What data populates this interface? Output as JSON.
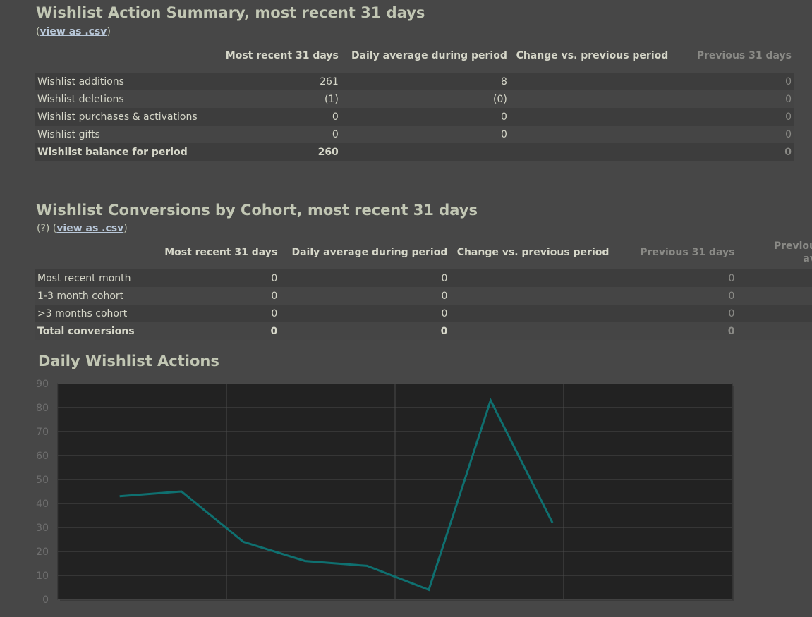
{
  "summary": {
    "title": "Wishlist Action Summary, most recent 31 days",
    "csv_link": "view as .csv",
    "columns": [
      "Most recent 31 days",
      "Daily average during period",
      "Change vs. previous period",
      "Previous 31 days"
    ],
    "rows": [
      {
        "label": "Wishlist additions",
        "recent": "261",
        "avg": "8",
        "change": "",
        "prev": "0"
      },
      {
        "label": "Wishlist deletions",
        "recent": "(1)",
        "avg": "(0)",
        "change": "",
        "prev": "0"
      },
      {
        "label": "Wishlist purchases & activations",
        "recent": "0",
        "avg": "0",
        "change": "",
        "prev": "0"
      },
      {
        "label": "Wishlist gifts",
        "recent": "0",
        "avg": "0",
        "change": "",
        "prev": "0"
      },
      {
        "label": "Wishlist balance for period",
        "recent": "260",
        "avg": "",
        "change": "",
        "prev": "0"
      }
    ]
  },
  "cohort": {
    "title": "Wishlist Conversions by Cohort, most recent 31 days",
    "help": "(?)",
    "csv_link": "view as .csv",
    "columns": [
      "Most recent 31 days",
      "Daily average during period",
      "Change vs. previous period",
      "Previous 31 days",
      "Previou",
      "av"
    ],
    "rows": [
      {
        "label": "Most recent month",
        "recent": "0",
        "avg": "0",
        "change": "",
        "prev": "0"
      },
      {
        "label": "1-3 month cohort",
        "recent": "0",
        "avg": "0",
        "change": "",
        "prev": "0"
      },
      {
        "label": ">3 months cohort",
        "recent": "0",
        "avg": "0",
        "change": "",
        "prev": "0"
      },
      {
        "label": "Total conversions",
        "recent": "0",
        "avg": "0",
        "change": "",
        "prev": "0"
      }
    ]
  },
  "chart_data": {
    "type": "line",
    "title": "Daily Wishlist Actions",
    "ylim": [
      0,
      90
    ],
    "yticks": [
      0,
      10,
      20,
      30,
      40,
      50,
      60,
      70,
      80,
      90
    ],
    "xlim_days": [
      0,
      12
    ],
    "series": [
      {
        "values_x_days": [
          1.1,
          2.2,
          3.3,
          4.4,
          5.5,
          6.6,
          7.7,
          8.8
        ],
        "values": [
          43,
          45,
          24,
          16,
          14,
          4,
          83,
          32
        ]
      }
    ],
    "line_color": "#0f7070",
    "grid": true
  }
}
